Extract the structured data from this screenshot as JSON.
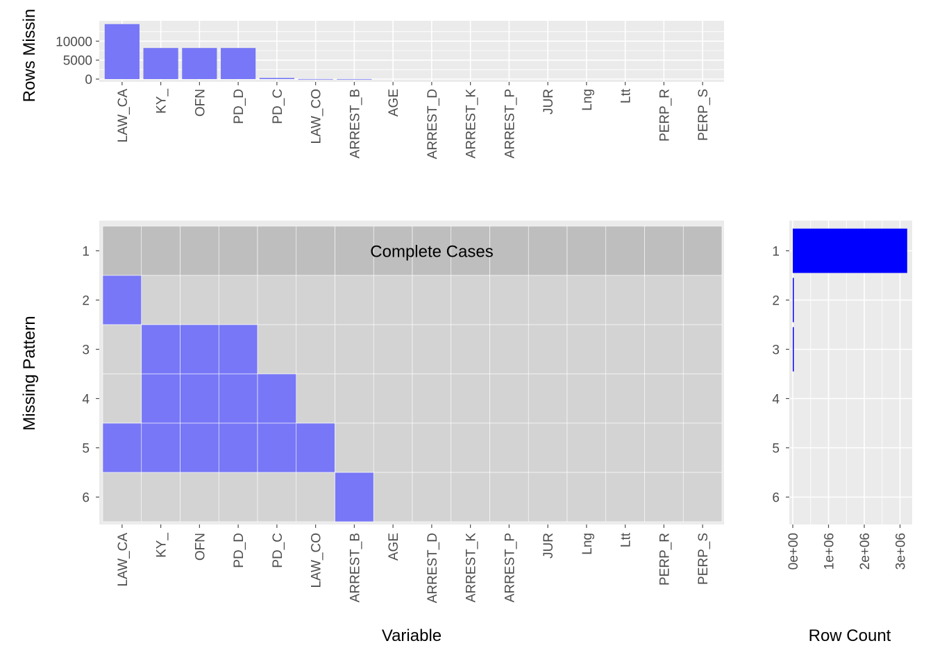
{
  "colors": {
    "panel_bg": "#ebebeb",
    "grid": "#ffffff",
    "missing_fill": "#7777f7",
    "complete_row": "#bebebe",
    "present_cell": "#d3d3d3",
    "row_count_bar": "#0000ff",
    "tick": "#4d4d4d"
  },
  "chart_data": [
    {
      "id": "rows-missing",
      "type": "bar",
      "ylabel": "Rows Missin",
      "categories": [
        "LAW_CA",
        "KY_",
        "OFN",
        "PD_D",
        "PD_C",
        "LAW_CO",
        "ARREST_B",
        "AGE",
        "ARREST_D",
        "ARREST_K",
        "ARREST_P",
        "JUR",
        "Lng",
        "Ltt",
        "PERP_R",
        "PERP_S"
      ],
      "values": [
        14500,
        8200,
        8200,
        8200,
        300,
        25,
        20,
        0,
        0,
        0,
        0,
        0,
        0,
        0,
        0,
        0
      ],
      "ylim": [
        0,
        15000
      ],
      "yticks": [
        {
          "v": 0,
          "label": "0"
        },
        {
          "v": 5000,
          "label": "5000"
        },
        {
          "v": 10000,
          "label": "10000"
        }
      ],
      "grid": true
    },
    {
      "id": "missing-pattern",
      "type": "heatmap",
      "xlabel": "Variable",
      "ylabel": "Missing Pattern",
      "variables": [
        "LAW_CA",
        "KY_",
        "OFN",
        "PD_D",
        "PD_C",
        "LAW_CO",
        "ARREST_B",
        "AGE",
        "ARREST_D",
        "ARREST_K",
        "ARREST_P",
        "JUR",
        "Lng",
        "Ltt",
        "PERP_R",
        "PERP_S"
      ],
      "patterns": [
        "1",
        "2",
        "3",
        "4",
        "5",
        "6"
      ],
      "complete_cases_label": "Complete Cases",
      "complete_pattern": "1",
      "missing_matrix": [
        [
          0,
          0,
          0,
          0,
          0,
          0,
          0,
          0,
          0,
          0,
          0,
          0,
          0,
          0,
          0,
          0
        ],
        [
          1,
          0,
          0,
          0,
          0,
          0,
          0,
          0,
          0,
          0,
          0,
          0,
          0,
          0,
          0,
          0
        ],
        [
          0,
          1,
          1,
          1,
          0,
          0,
          0,
          0,
          0,
          0,
          0,
          0,
          0,
          0,
          0,
          0
        ],
        [
          0,
          1,
          1,
          1,
          1,
          0,
          0,
          0,
          0,
          0,
          0,
          0,
          0,
          0,
          0,
          0
        ],
        [
          1,
          1,
          1,
          1,
          1,
          1,
          0,
          0,
          0,
          0,
          0,
          0,
          0,
          0,
          0,
          0
        ],
        [
          0,
          0,
          0,
          0,
          0,
          0,
          1,
          0,
          0,
          0,
          0,
          0,
          0,
          0,
          0,
          0
        ]
      ]
    },
    {
      "id": "row-count",
      "type": "bar",
      "orientation": "horizontal",
      "xlabel": "Row Count",
      "categories": [
        "1",
        "2",
        "3",
        "4",
        "5",
        "6"
      ],
      "values": [
        3200000,
        8200,
        6000,
        300,
        25,
        20
      ],
      "xlim": [
        0,
        3200000
      ],
      "xticks": [
        {
          "v": 0,
          "label": "0e+00"
        },
        {
          "v": 1000000,
          "label": "1e+06"
        },
        {
          "v": 2000000,
          "label": "2e+06"
        },
        {
          "v": 3000000,
          "label": "3e+06"
        }
      ],
      "grid": true
    }
  ]
}
